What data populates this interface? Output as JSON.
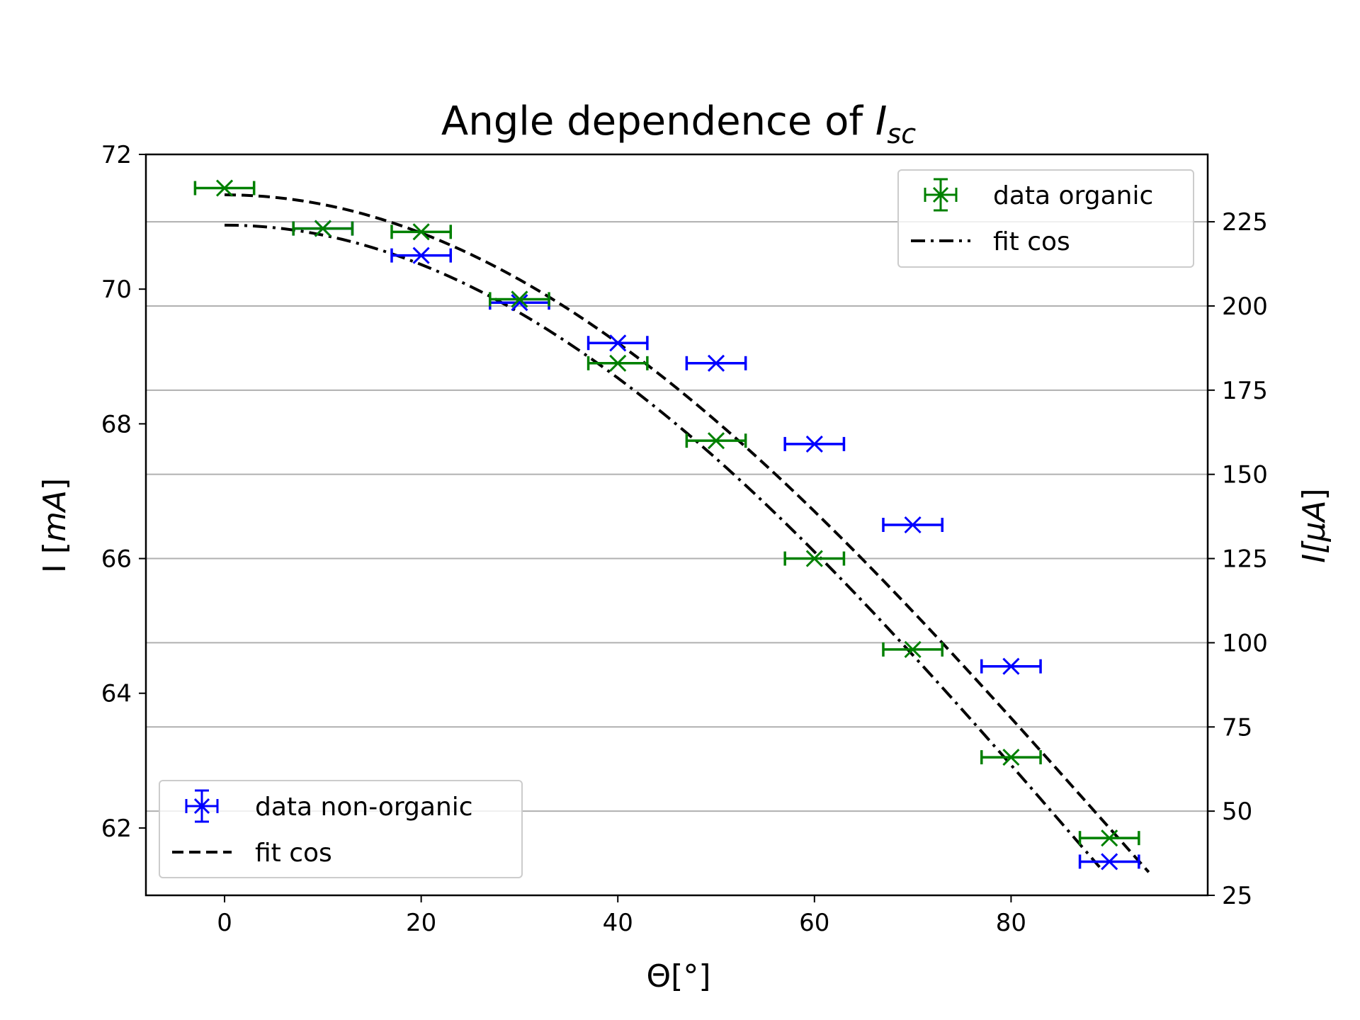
{
  "chart_data": {
    "type": "scatter",
    "title": "Angle dependence of ",
    "title_math": "I",
    "title_sub": "sc",
    "xlabel": "Θ[°]",
    "ylabel_left": "I [",
    "ylabel_left_math": "mA",
    "ylabel_left_end": "]",
    "ylabel_right": "I[",
    "ylabel_right_math": "μA",
    "ylabel_right_end": "]",
    "xlim": [
      -8,
      100
    ],
    "ylim_left": [
      61,
      72
    ],
    "ylim_right": [
      25,
      245
    ],
    "x_ticks": [
      0,
      20,
      40,
      60,
      80
    ],
    "y_left_ticks": [
      62,
      64,
      66,
      68,
      70,
      72
    ],
    "y_right_ticks": [
      25,
      50,
      75,
      100,
      125,
      150,
      175,
      200,
      225
    ],
    "grid": "horizontal lines on right-axis ticks",
    "x_error": 3,
    "series": [
      {
        "name": "data non-organic",
        "axis": "left",
        "color": "#0000ff",
        "marker": "x",
        "x": [
          10,
          20,
          30,
          40,
          50,
          60,
          70,
          80,
          90
        ],
        "y": [
          70.9,
          70.5,
          69.8,
          69.2,
          68.9,
          67.7,
          66.5,
          64.4,
          61.5
        ]
      },
      {
        "name": "fit cos",
        "axis": "left",
        "color": "#000000",
        "style": "dashed",
        "fit": {
          "amplitude": 9.4,
          "offset": 62.0,
          "theta_max": 94
        }
      },
      {
        "name": "data organic",
        "axis": "right",
        "color": "#008000",
        "marker": "x",
        "x": [
          0,
          10,
          20,
          30,
          40,
          50,
          60,
          70,
          80,
          90
        ],
        "y": [
          235,
          223,
          222,
          202,
          183,
          160,
          125,
          98,
          66,
          42
        ]
      },
      {
        "name": "fit cos",
        "axis": "right",
        "color": "#000000",
        "style": "dashdot",
        "fit": {
          "amplitude": 194,
          "offset": 30,
          "theta_max": 89
        }
      }
    ],
    "legends": [
      {
        "placement": "upper right",
        "entries": [
          "data organic",
          "fit cos"
        ]
      },
      {
        "placement": "lower left",
        "entries": [
          "data non-organic",
          "fit cos"
        ]
      }
    ]
  }
}
